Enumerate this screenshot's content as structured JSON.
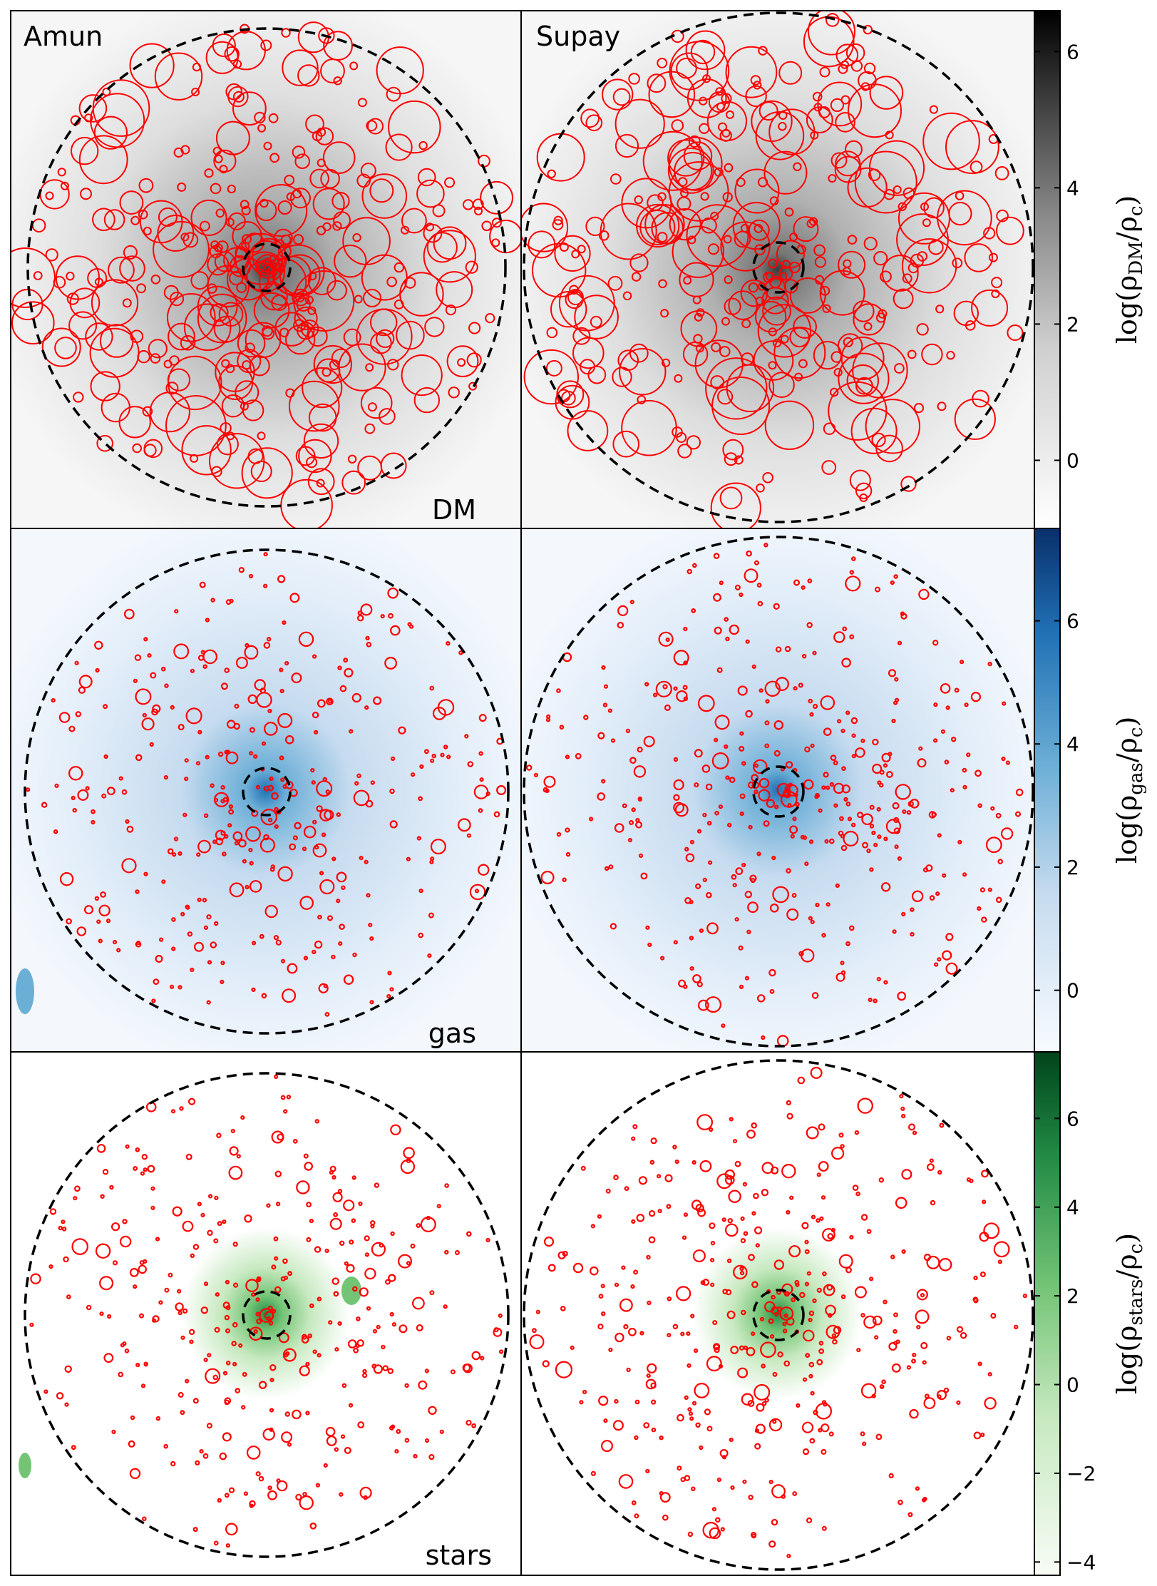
{
  "figure": {
    "columns": [
      "Amun",
      "Supay"
    ],
    "rows": [
      {
        "id": "dm",
        "label": "DM",
        "colorbar": {
          "label": "log(ρDM/ρc)",
          "label_main": "log(ρ",
          "label_sub": "DM",
          "label_rest": "/ρ",
          "label_sub2": "c",
          "label_end": ")",
          "min": -1.0,
          "max": 6.6,
          "ticks": [
            "0",
            "2",
            "4",
            "6"
          ],
          "tick_values": [
            0,
            2,
            4,
            6
          ],
          "colors": [
            "#ffffff",
            "#cfcfcf",
            "#8a8a8a",
            "#404040",
            "#000000"
          ]
        },
        "halo_marker_scale": "large"
      },
      {
        "id": "gas",
        "label": "gas",
        "colorbar": {
          "label": "log(ρgas/ρc)",
          "label_main": "log(ρ",
          "label_sub": "gas",
          "label_rest": "/ρ",
          "label_sub2": "c",
          "label_end": ")",
          "min": -1.0,
          "max": 7.5,
          "ticks": [
            "0",
            "2",
            "4",
            "6"
          ],
          "tick_values": [
            0,
            2,
            4,
            6
          ],
          "colors": [
            "#f7fbff",
            "#c6dbef",
            "#6baed6",
            "#2171b5",
            "#08306b"
          ]
        },
        "halo_marker_scale": "small"
      },
      {
        "id": "stars",
        "label": "stars",
        "colorbar": {
          "label": "log(ρstars/ρc)",
          "label_main": "log(ρ",
          "label_sub": "stars",
          "label_rest": "/ρ",
          "label_sub2": "c",
          "label_end": ")",
          "min": -4.3,
          "max": 7.5,
          "ticks": [
            "−4",
            "−2",
            "0",
            "2",
            "4",
            "6"
          ],
          "tick_values": [
            -4,
            -2,
            0,
            2,
            4,
            6
          ],
          "colors": [
            "#f7fcf5",
            "#c7e9c0",
            "#74c476",
            "#238b45",
            "#00441b"
          ]
        },
        "halo_marker_scale": "small"
      }
    ],
    "marker_color": "#ff0000",
    "circle_color": "#000000"
  },
  "chart_data": {
    "type": "image",
    "panel_grid": [
      3,
      2
    ],
    "panels": [
      {
        "row": "DM",
        "column": "Amun"
      },
      {
        "row": "DM",
        "column": "Supay"
      },
      {
        "row": "gas",
        "column": "Amun"
      },
      {
        "row": "gas",
        "column": "Supay"
      },
      {
        "row": "stars",
        "column": "Amun"
      },
      {
        "row": "stars",
        "column": "Supay"
      }
    ],
    "overlays": {
      "virial_radius_circle": "dashed black, outer",
      "inner_radius_circle": "dashed black, central",
      "subhalos": "red open circles"
    }
  }
}
